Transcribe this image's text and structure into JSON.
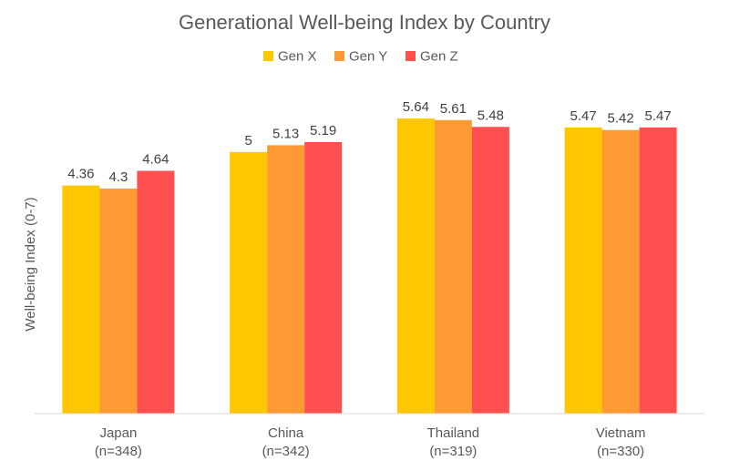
{
  "chart_data": {
    "type": "bar",
    "title": "Generational Well-being Index by Country",
    "ylabel": "Well-being Index (0-7)",
    "xlabel": "",
    "ylim": [
      0,
      7
    ],
    "grid": false,
    "legend_position": "top",
    "categories": [
      [
        "Japan",
        "(n=348)"
      ],
      [
        "China",
        "(n=342)"
      ],
      [
        "Thailand",
        "(n=319)"
      ],
      [
        "Vietnam",
        "(n=330)"
      ]
    ],
    "series": [
      {
        "name": "Gen X",
        "color": "#FFC700",
        "values": [
          4.36,
          5,
          5.64,
          5.47
        ]
      },
      {
        "name": "Gen Y",
        "color": "#FF9933",
        "values": [
          4.3,
          5.13,
          5.61,
          5.42
        ]
      },
      {
        "name": "Gen Z",
        "color": "#FF5050",
        "values": [
          4.64,
          5.19,
          5.48,
          5.47
        ]
      }
    ]
  }
}
